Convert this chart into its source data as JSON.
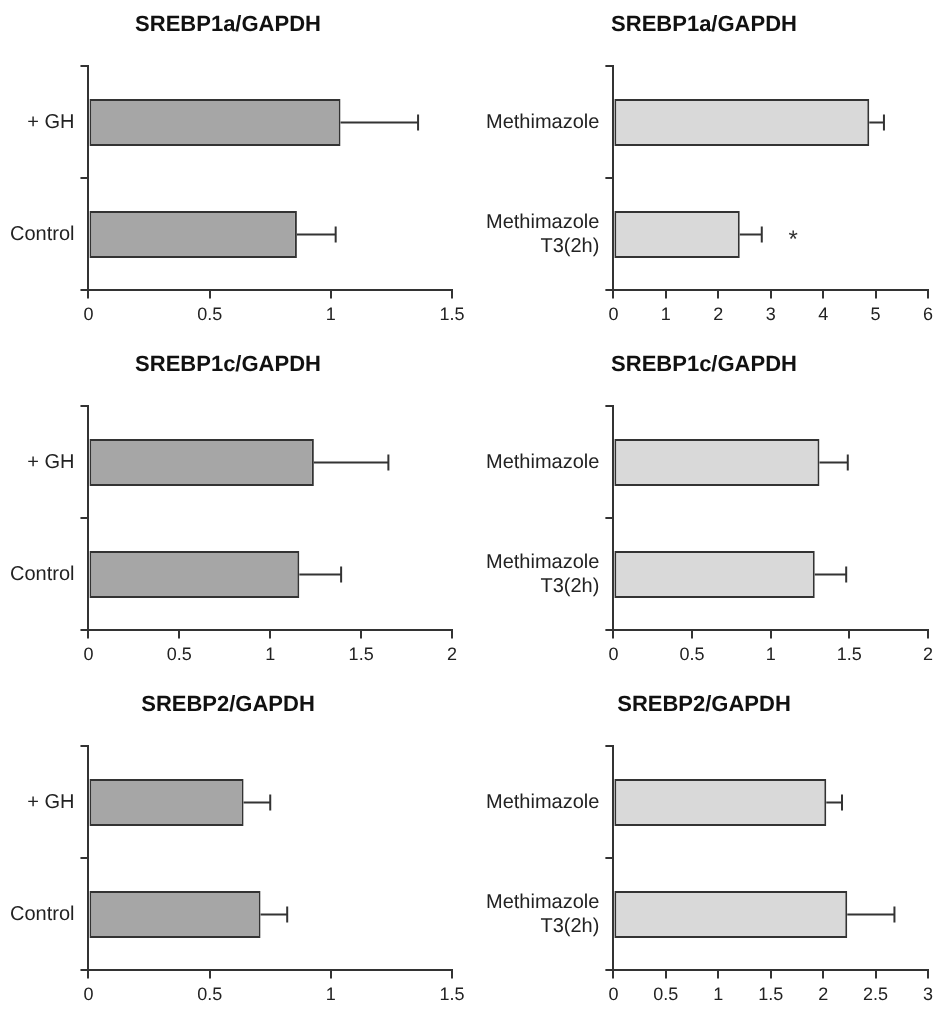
{
  "chart_data": [
    {
      "type": "bar",
      "orientation": "horizontal",
      "title": "SREBP1a/GAPDH",
      "categories": [
        "+ GH",
        "Control"
      ],
      "values": [
        1.04,
        0.86
      ],
      "errors": [
        [
          1.04,
          1.36
        ],
        [
          0.86,
          1.02
        ]
      ],
      "color": "#a6a6a6",
      "xlim": [
        0,
        1.5
      ],
      "xticks": [
        0,
        0.5,
        1,
        1.5
      ]
    },
    {
      "type": "bar",
      "orientation": "horizontal",
      "title": "SREBP1a/GAPDH",
      "categories": [
        "Methimazole",
        "Methimazole\nT3(2h)"
      ],
      "values": [
        4.88,
        2.41
      ],
      "errors": [
        [
          4.88,
          5.16
        ],
        [
          2.41,
          2.83
        ]
      ],
      "color": "#d9d9d9",
      "xlim": [
        0,
        6
      ],
      "xticks": [
        0,
        1,
        2,
        3,
        4,
        5,
        6
      ],
      "annotations": [
        "*"
      ]
    },
    {
      "type": "bar",
      "orientation": "horizontal",
      "title": "SREBP1c/GAPDH",
      "categories": [
        "+ GH",
        "Control"
      ],
      "values": [
        1.24,
        1.16
      ],
      "errors": [
        [
          1.24,
          1.65
        ],
        [
          1.16,
          1.39
        ]
      ],
      "color": "#a6a6a6",
      "xlim": [
        0,
        2
      ],
      "xticks": [
        0,
        0.5,
        1,
        1.5,
        2
      ]
    },
    {
      "type": "bar",
      "orientation": "horizontal",
      "title": "SREBP1c/GAPDH",
      "categories": [
        "Methimazole",
        "Methimazole\nT3(2h)"
      ],
      "values": [
        1.31,
        1.28
      ],
      "errors": [
        [
          1.31,
          1.49
        ],
        [
          1.28,
          1.48
        ]
      ],
      "color": "#d9d9d9",
      "xlim": [
        0,
        2
      ],
      "xticks": [
        0,
        0.5,
        1,
        1.5,
        2
      ]
    },
    {
      "type": "bar",
      "orientation": "horizontal",
      "title": "SREBP2/GAPDH",
      "categories": [
        "+ GH",
        "Control"
      ],
      "values": [
        0.64,
        0.71
      ],
      "errors": [
        [
          0.64,
          0.75
        ],
        [
          0.71,
          0.82
        ]
      ],
      "color": "#a6a6a6",
      "xlim": [
        0,
        1.5
      ],
      "xticks": [
        0,
        0.5,
        1,
        1.5
      ]
    },
    {
      "type": "bar",
      "orientation": "horizontal",
      "title": "SREBP2/GAPDH",
      "categories": [
        "Methimazole",
        "Methimazole\nT3(2h)"
      ],
      "values": [
        2.03,
        2.23
      ],
      "errors": [
        [
          2.03,
          2.18
        ],
        [
          2.23,
          2.68
        ]
      ],
      "color": "#d9d9d9",
      "xlim": [
        0,
        3
      ],
      "xticks": [
        0,
        0.5,
        1,
        1.5,
        2,
        2.5,
        3
      ]
    }
  ]
}
